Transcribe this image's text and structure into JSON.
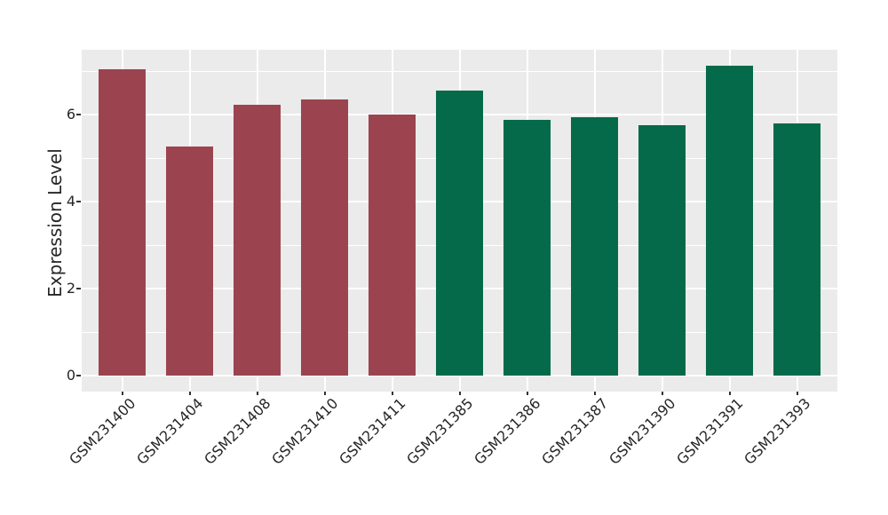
{
  "colors": {
    "figure_background": "#FFFFFF",
    "panel_background": "#EBEBEB",
    "gridline": "#FFFFFF",
    "bar_red": "#9B4450",
    "bar_green": "#046A49",
    "tick_text": "#262626",
    "tick_mark": "#333333"
  },
  "chart_data": {
    "type": "bar",
    "title": "",
    "ylabel": "Expression Level",
    "xlabel": "",
    "categories": [
      "GSM231400",
      "GSM231404",
      "GSM231408",
      "GSM231410",
      "GSM231411",
      "GSM231385",
      "GSM231386",
      "GSM231387",
      "GSM231390",
      "GSM231391",
      "GSM231393"
    ],
    "values": [
      7.05,
      5.27,
      6.23,
      6.36,
      6.01,
      6.56,
      5.89,
      5.94,
      5.76,
      7.12,
      5.8
    ],
    "bar_colors": [
      "#9B4450",
      "#9B4450",
      "#9B4450",
      "#9B4450",
      "#9B4450",
      "#046A49",
      "#046A49",
      "#046A49",
      "#046A49",
      "#046A49",
      "#046A49"
    ],
    "groups": [
      {
        "color": "#9B4450",
        "categories": [
          "GSM231400",
          "GSM231404",
          "GSM231408",
          "GSM231410",
          "GSM231411"
        ]
      },
      {
        "color": "#046A49",
        "categories": [
          "GSM231385",
          "GSM231386",
          "GSM231387",
          "GSM231390",
          "GSM231391",
          "GSM231393"
        ]
      }
    ],
    "yticks": [
      0,
      2,
      4,
      6
    ],
    "ylim": [
      -0.37,
      7.49
    ],
    "grid": {
      "horizontal_interval": 1,
      "vertical": "at each category center",
      "style": "white lines on gray panel"
    },
    "legend_position": "none",
    "x_tick_rotation_degrees": 45
  }
}
